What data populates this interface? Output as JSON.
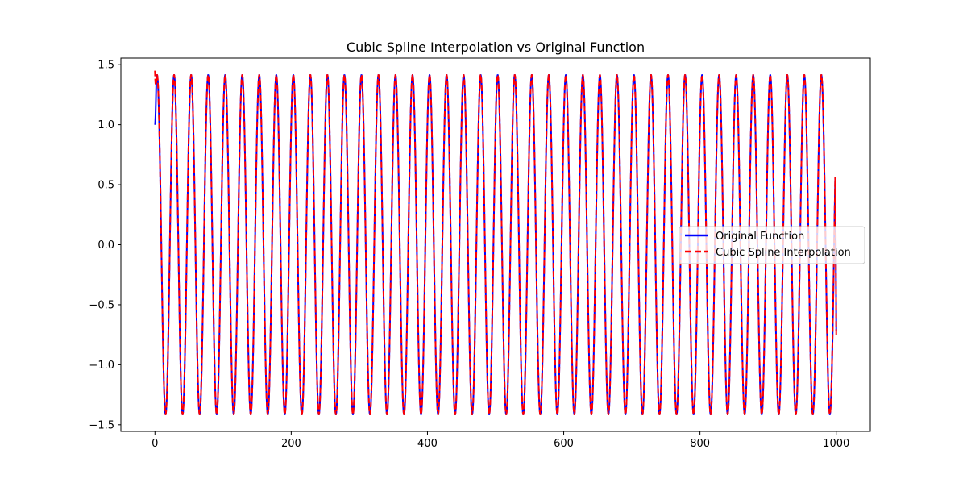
{
  "chart_data": {
    "type": "line",
    "title": "Cubic Spline Interpolation vs Original Function",
    "xlabel": "",
    "ylabel": "",
    "xlim": [
      -50,
      1050
    ],
    "ylim": [
      -1.555,
      1.555
    ],
    "x_ticks": [
      0,
      200,
      400,
      600,
      800,
      1000
    ],
    "x_tick_labels": [
      "0",
      "200",
      "400",
      "600",
      "800",
      "1000"
    ],
    "y_ticks": [
      -1.5,
      -1.0,
      -0.5,
      0.0,
      0.5,
      1.0,
      1.5
    ],
    "y_tick_labels": [
      "−1.5",
      "−1.0",
      "−0.5",
      "0.0",
      "0.5",
      "1.0",
      "1.5"
    ],
    "grid": false,
    "legend_position": "center-right",
    "series": [
      {
        "name": "Original Function",
        "color": "#0000ff",
        "style": "solid",
        "function": "sin(x) + cos(x)",
        "x_range": [
          0,
          1000
        ],
        "amplitude": 1.414,
        "period": 25.0,
        "start_value": 1.0,
        "end_value": -0.72
      },
      {
        "name": "Cubic Spline Interpolation",
        "color": "#ff0000",
        "style": "dashed",
        "x_range": [
          0,
          1000
        ],
        "amplitude": 1.414,
        "period": 25.0,
        "start_value": 1.45,
        "end_value": -0.75
      }
    ]
  }
}
